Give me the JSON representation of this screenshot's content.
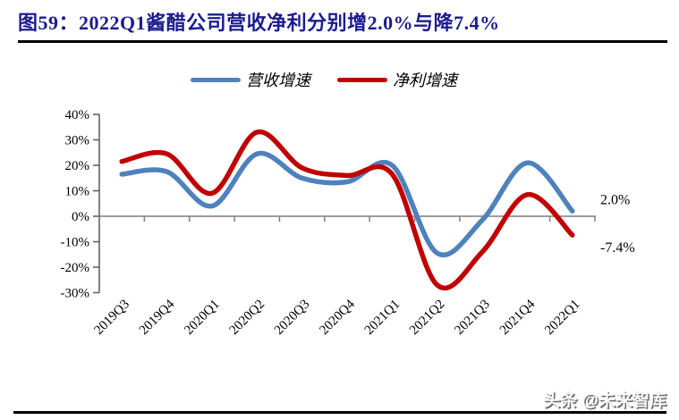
{
  "title": {
    "text": "图59：2022Q1酱醋公司营收净利分别增2.0%与降7.4%"
  },
  "watermark": {
    "text": "头条 @未来智库"
  },
  "chart_data": {
    "type": "line",
    "smooth": true,
    "title": "2022Q1酱醋公司营收净利分别增2.0%与降7.4%",
    "categories": [
      "2019Q3",
      "2019Q4",
      "2020Q1",
      "2020Q2",
      "2020Q3",
      "2020Q4",
      "2021Q1",
      "2021Q2",
      "2021Q3",
      "2021Q4",
      "2022Q1"
    ],
    "series": [
      {
        "name": "营收增速",
        "color": "#4F81BD",
        "values": [
          16.5,
          17.5,
          4,
          24.5,
          15,
          13.5,
          20,
          -14.5,
          -1.5,
          21,
          2.0
        ],
        "end_label": "2.0%"
      },
      {
        "name": "净利增速",
        "color": "#C00000",
        "values": [
          21.5,
          24.5,
          9,
          33,
          19,
          16,
          16.5,
          -27,
          -14,
          8.5,
          -7.4
        ],
        "end_label": "-7.4%"
      }
    ],
    "xlabel": "",
    "ylabel": "",
    "ylim": [
      -30,
      40
    ],
    "ytick_step": 10,
    "ytick_suffix": "%",
    "grid": false,
    "legend_position": "top",
    "axis_color": "#595959",
    "zero_line_color": "#7F7F7F",
    "tick_label_color": "#000000"
  }
}
